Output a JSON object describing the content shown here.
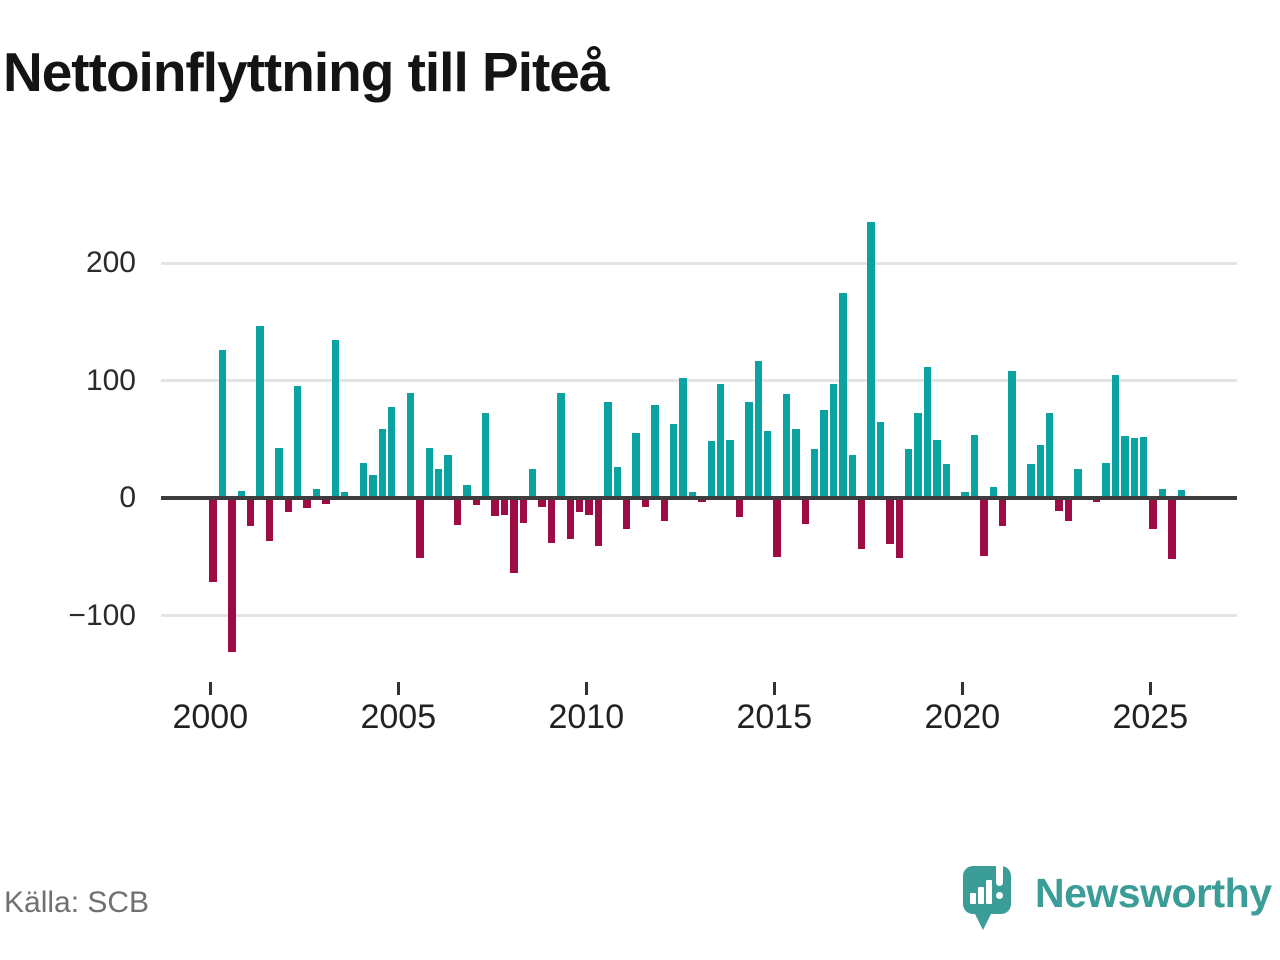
{
  "title": "Nettoinflyttning till Piteå",
  "source": "Källa: SCB",
  "logo": {
    "text": "Newsworthy"
  },
  "colors": {
    "positive_bar": "#0ba3a1",
    "negative_bar": "#9e0c46",
    "logo_teal": "#3a9d97",
    "grid": "#e4e4e4",
    "zero_line": "#3d3d3d",
    "title_text": "#141414",
    "axis_text": "#2b2b2b",
    "source_text": "#707070"
  },
  "chart_data": {
    "type": "bar",
    "title": "Nettoinflyttning till Piteå",
    "frequency": "quarterly",
    "start_period": "2000 Q1",
    "end_period": "2025 Q4",
    "grid": "horizontal-only",
    "legend_position": "none",
    "x_axis": {
      "tick_labels": [
        "2000",
        "2005",
        "2010",
        "2015",
        "2020",
        "2025"
      ],
      "tick_years": [
        2000,
        2005,
        2010,
        2015,
        2020,
        2025
      ]
    },
    "y_axis": {
      "tick_values": [
        200,
        100,
        0,
        -100
      ],
      "tick_labels": [
        "200",
        "100",
        "0",
        "−100"
      ],
      "gridlines": [
        200,
        100,
        -100
      ],
      "range": [
        -150,
        255
      ]
    },
    "categories": [
      "2000 Q1",
      "2000 Q2",
      "2000 Q3",
      "2000 Q4",
      "2001 Q1",
      "2001 Q2",
      "2001 Q3",
      "2001 Q4",
      "2002 Q1",
      "2002 Q2",
      "2002 Q3",
      "2002 Q4",
      "2003 Q1",
      "2003 Q2",
      "2003 Q3",
      "2003 Q4",
      "2004 Q1",
      "2004 Q2",
      "2004 Q3",
      "2004 Q4",
      "2005 Q1",
      "2005 Q2",
      "2005 Q3",
      "2005 Q4",
      "2006 Q1",
      "2006 Q2",
      "2006 Q3",
      "2006 Q4",
      "2007 Q1",
      "2007 Q2",
      "2007 Q3",
      "2007 Q4",
      "2008 Q1",
      "2008 Q2",
      "2008 Q3",
      "2008 Q4",
      "2009 Q1",
      "2009 Q2",
      "2009 Q3",
      "2009 Q4",
      "2010 Q1",
      "2010 Q2",
      "2010 Q3",
      "2010 Q4",
      "2011 Q1",
      "2011 Q2",
      "2011 Q3",
      "2011 Q4",
      "2012 Q1",
      "2012 Q2",
      "2012 Q3",
      "2012 Q4",
      "2013 Q1",
      "2013 Q2",
      "2013 Q3",
      "2013 Q4",
      "2014 Q1",
      "2014 Q2",
      "2014 Q3",
      "2014 Q4",
      "2015 Q1",
      "2015 Q2",
      "2015 Q3",
      "2015 Q4",
      "2016 Q1",
      "2016 Q2",
      "2016 Q3",
      "2016 Q4",
      "2017 Q1",
      "2017 Q2",
      "2017 Q3",
      "2017 Q4",
      "2018 Q1",
      "2018 Q2",
      "2018 Q3",
      "2018 Q4",
      "2019 Q1",
      "2019 Q2",
      "2019 Q3",
      "2019 Q4",
      "2020 Q1",
      "2020 Q2",
      "2020 Q3",
      "2020 Q4",
      "2021 Q1",
      "2021 Q2",
      "2021 Q3",
      "2021 Q4",
      "2022 Q1",
      "2022 Q2",
      "2022 Q3",
      "2022 Q4",
      "2023 Q1",
      "2023 Q2",
      "2023 Q3",
      "2023 Q4",
      "2024 Q1",
      "2024 Q2",
      "2024 Q3",
      "2024 Q4",
      "2025 Q1",
      "2025 Q2",
      "2025 Q3",
      "2025 Q4"
    ],
    "series": [
      {
        "name": "Nettoinflyttning",
        "values": [
          -71,
          126,
          -131,
          6,
          -24,
          147,
          -36,
          43,
          -12,
          96,
          -8,
          8,
          -5,
          135,
          5,
          0,
          30,
          20,
          59,
          78,
          0,
          90,
          -51,
          43,
          25,
          37,
          -23,
          11,
          -6,
          73,
          -15,
          -14,
          -64,
          -21,
          25,
          -7,
          -38,
          90,
          -35,
          -12,
          -14,
          -41,
          82,
          27,
          -26,
          56,
          -7,
          79,
          -19,
          63,
          102,
          5,
          -3,
          49,
          97,
          50,
          -16,
          82,
          117,
          57,
          -50,
          89,
          59,
          -22,
          42,
          75,
          97,
          175,
          37,
          -43,
          235,
          65,
          -39,
          -51,
          42,
          73,
          112,
          50,
          29,
          0,
          5,
          54,
          -49,
          10,
          -24,
          108,
          0,
          29,
          45,
          73,
          -11,
          -19,
          25,
          0,
          -3,
          30,
          105,
          53,
          51,
          52,
          -26,
          8,
          -52,
          7
        ]
      }
    ]
  }
}
